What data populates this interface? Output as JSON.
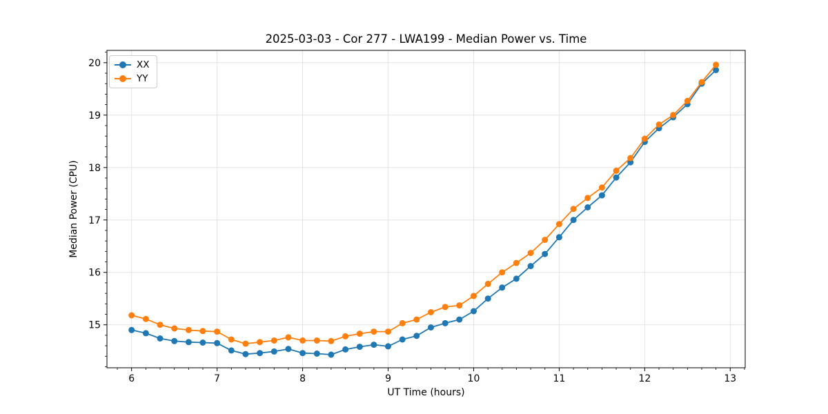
{
  "chart_data": {
    "type": "line",
    "title": "2025-03-03 - Cor 277 - LWA199 - Median Power vs. Time",
    "xlabel": "UT Time (hours)",
    "ylabel": "Median Power (CPU)",
    "legend_position": "upper left",
    "grid": "major gridlines both axes, light gray",
    "marker": "circle",
    "xlim": [
      5.712,
      13.175
    ],
    "ylim": [
      14.18,
      20.235
    ],
    "x_ticks": [
      6,
      7,
      8,
      9,
      10,
      11,
      12,
      13
    ],
    "y_ticks": [
      15,
      16,
      17,
      18,
      19,
      20
    ],
    "x_minor_step": 0.166667,
    "y_minor_step": 0.2,
    "grid_color": "#e0e0e0",
    "axis_color": "#000000",
    "x": [
      6.0,
      6.167,
      6.333,
      6.5,
      6.667,
      6.833,
      7.0,
      7.167,
      7.333,
      7.5,
      7.667,
      7.833,
      8.0,
      8.167,
      8.333,
      8.5,
      8.667,
      8.833,
      9.0,
      9.167,
      9.333,
      9.5,
      9.667,
      9.833,
      10.0,
      10.167,
      10.333,
      10.5,
      10.667,
      10.833,
      11.0,
      11.167,
      11.333,
      11.5,
      11.667,
      11.833,
      12.0,
      12.167,
      12.333,
      12.5,
      12.667,
      12.833
    ],
    "series": [
      {
        "name": "XX",
        "color": "#1f77b4",
        "values": [
          14.9,
          14.84,
          14.74,
          14.69,
          14.67,
          14.66,
          14.65,
          14.51,
          14.44,
          14.46,
          14.49,
          14.54,
          14.46,
          14.45,
          14.43,
          14.53,
          14.58,
          14.62,
          14.59,
          14.72,
          14.79,
          14.95,
          15.03,
          15.1,
          15.26,
          15.5,
          15.71,
          15.88,
          16.12,
          16.35,
          16.67,
          17.0,
          17.24,
          17.47,
          17.81,
          18.1,
          18.49,
          18.75,
          18.96,
          19.21,
          19.6,
          19.86
        ]
      },
      {
        "name": "YY",
        "color": "#ff7f0e",
        "values": [
          15.18,
          15.11,
          15.0,
          14.93,
          14.9,
          14.88,
          14.87,
          14.72,
          14.64,
          14.67,
          14.7,
          14.76,
          14.7,
          14.7,
          14.69,
          14.78,
          14.83,
          14.87,
          14.87,
          15.03,
          15.1,
          15.24,
          15.34,
          15.37,
          15.55,
          15.78,
          16.0,
          16.18,
          16.37,
          16.62,
          16.92,
          17.21,
          17.42,
          17.62,
          17.94,
          18.18,
          18.55,
          18.82,
          19.0,
          19.27,
          19.63,
          19.96
        ]
      }
    ]
  }
}
